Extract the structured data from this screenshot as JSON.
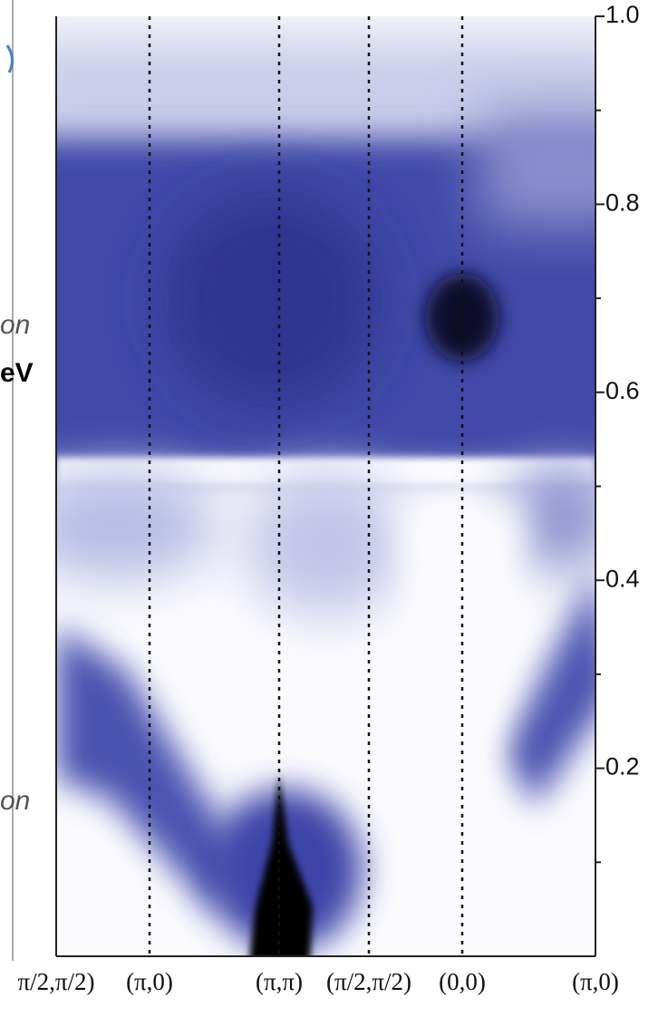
{
  "chart_data": {
    "type": "heatmap",
    "categories": [
      "π/2,π/2)",
      "(π,0)",
      "(π,π)",
      "(π/2,π/2)",
      "(0,0)",
      "(π,0)"
    ],
    "ylim": [
      0,
      1.0
    ],
    "yticks": [
      0.2,
      0.4,
      0.6,
      0.8,
      {
        "value": 1,
        "label": "1.0"
      }
    ],
    "yminorticks": [
      0.1,
      0.3,
      0.5,
      0.7,
      0.9
    ],
    "annotations": [
      "on",
      "eV",
      "on"
    ],
    "color": "#3f47a8"
  }
}
